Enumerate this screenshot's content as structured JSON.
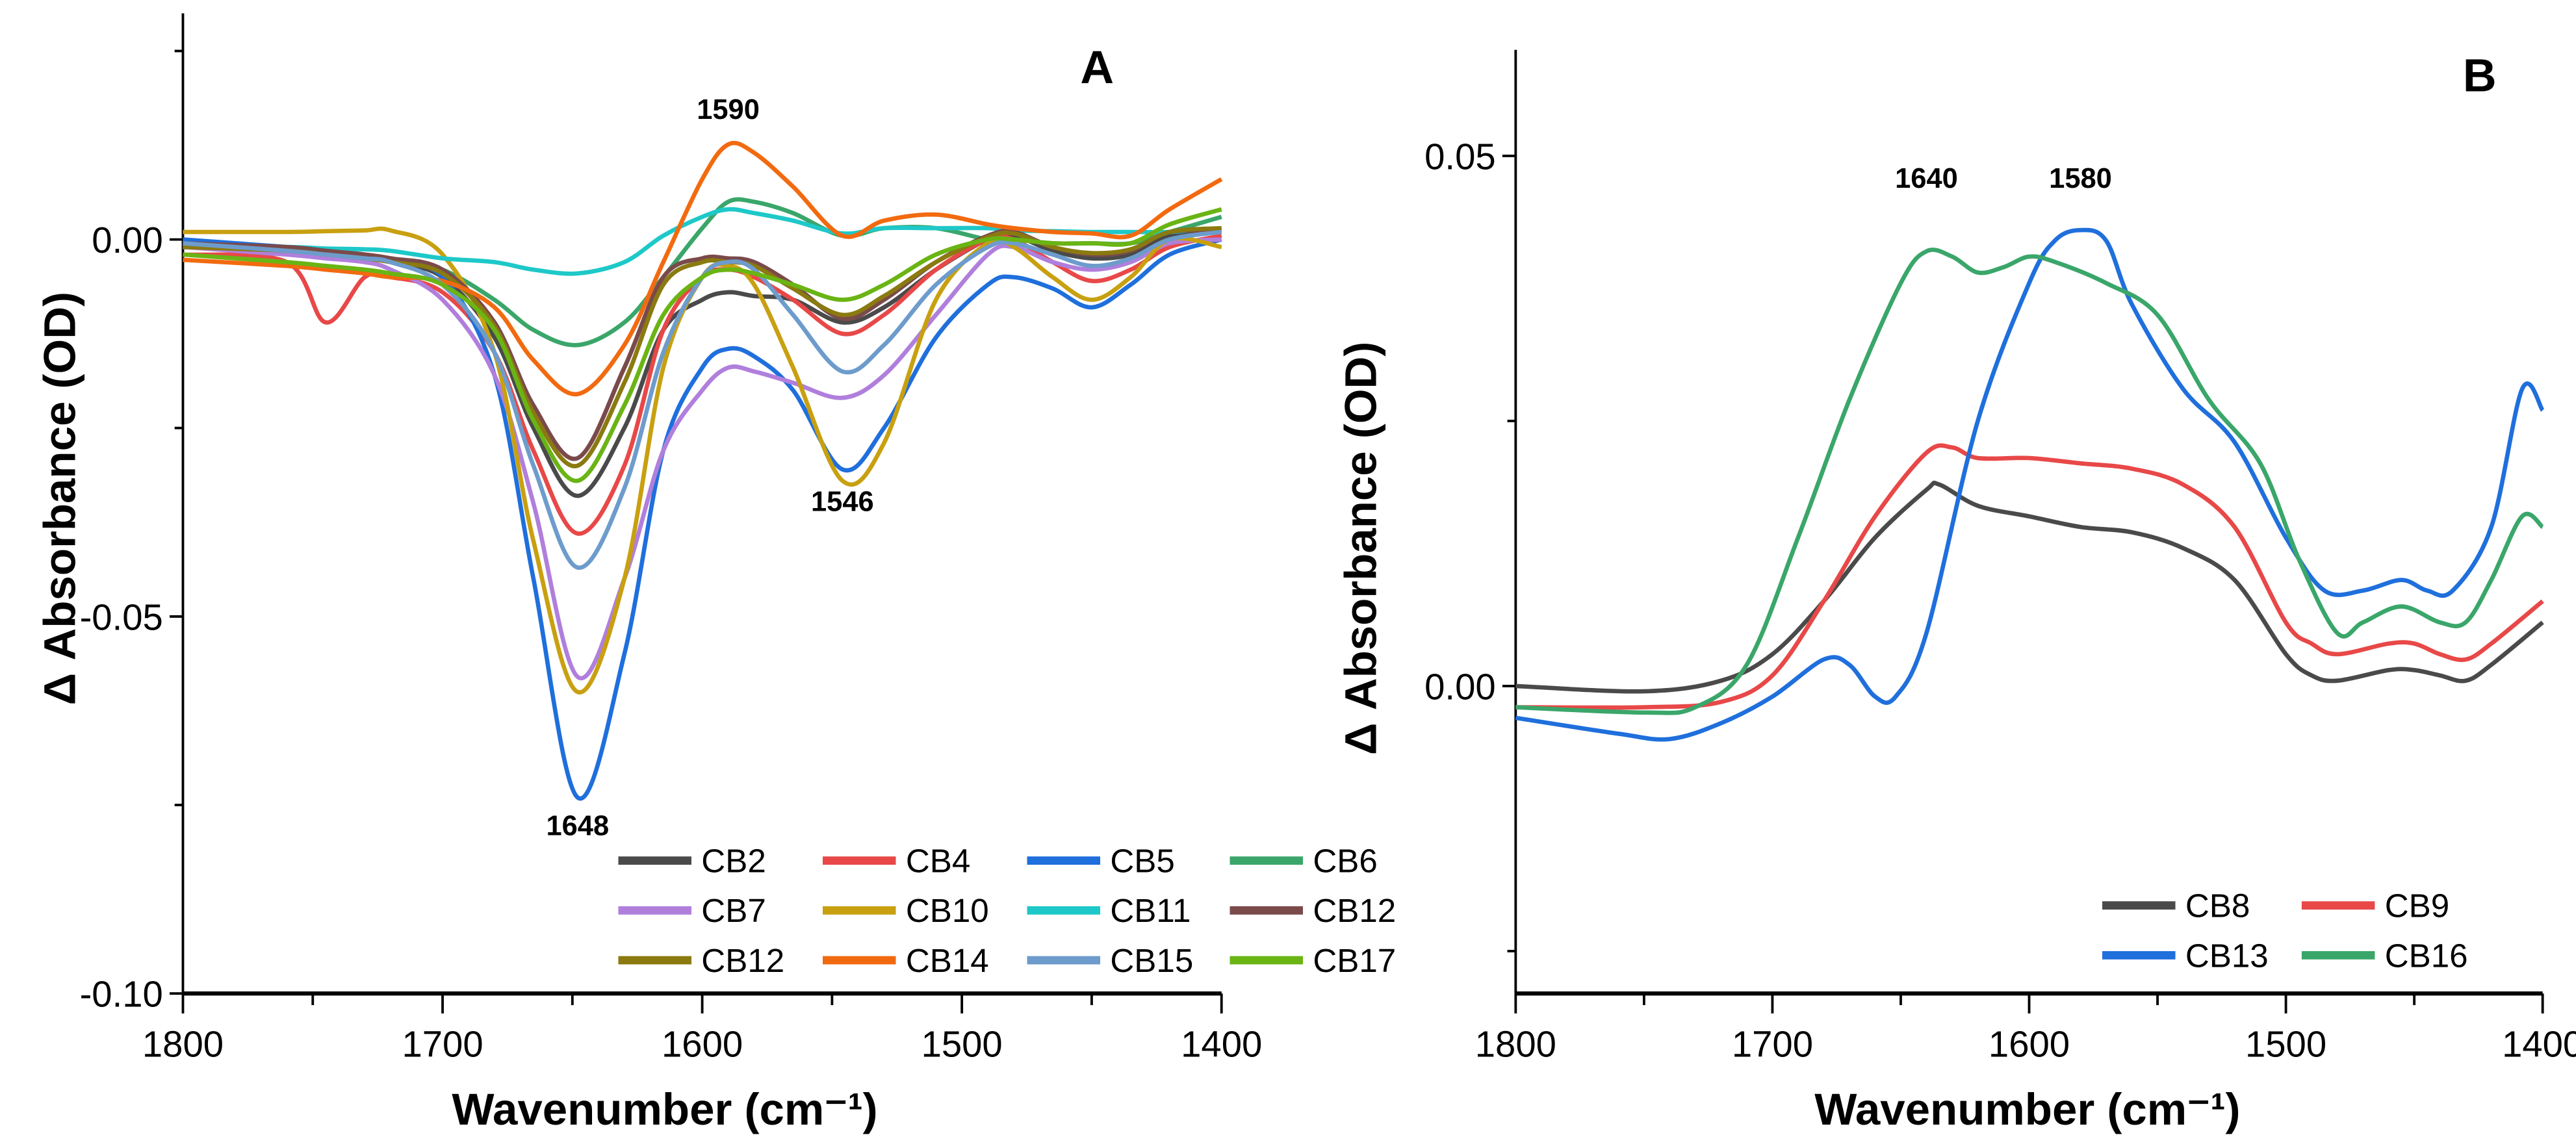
{
  "chart_data": [
    {
      "panel": "A",
      "type": "line",
      "xlabel": "Wavenumber (cm⁻¹)",
      "ylabel": "Δ Absorbance (OD)",
      "xlim": [
        1800,
        1400
      ],
      "ylim": [
        -0.1,
        0.03
      ],
      "xticks": [
        "1800",
        "1700",
        "1600",
        "1500",
        "1400"
      ],
      "yticks": [
        "0.00",
        "-0.05",
        "-0.10"
      ],
      "annotations": [
        {
          "text": "1590",
          "x": 1590,
          "y": 0.016
        },
        {
          "text": "1546",
          "x": 1546,
          "y": -0.036
        },
        {
          "text": "1648",
          "x": 1648,
          "y": -0.079
        }
      ],
      "legend_position": "bottom-right",
      "x": [
        1800,
        1760,
        1745,
        1730,
        1720,
        1700,
        1680,
        1665,
        1648,
        1630,
        1615,
        1600,
        1590,
        1580,
        1565,
        1546,
        1530,
        1510,
        1490,
        1480,
        1465,
        1450,
        1435,
        1420,
        1400
      ],
      "series": [
        {
          "name": "CB2",
          "color": "#4a4a4a",
          "values": [
            -0.5,
            -1.5,
            -2,
            -2.5,
            -3,
            -5,
            -13,
            -25,
            -34,
            -25,
            -12,
            -8,
            -7,
            -7.5,
            -8,
            -11,
            -9,
            -4,
            0,
            0.5,
            -1.5,
            -2.5,
            -2,
            0.5,
            1
          ]
        },
        {
          "name": "CB4",
          "color": "#e84848",
          "values": [
            -2,
            -3,
            -11,
            -5,
            -5,
            -7,
            -15,
            -28,
            -39,
            -30,
            -12,
            -5,
            -4,
            -5,
            -8,
            -12.5,
            -10,
            -4,
            0,
            0,
            -3,
            -5.5,
            -4,
            -1,
            0.5
          ]
        },
        {
          "name": "CB5",
          "color": "#1f6fdc",
          "values": [
            0,
            -1,
            -1.5,
            -2,
            -3,
            -5,
            -18,
            -45,
            -74,
            -55,
            -28,
            -17,
            -14.5,
            -15.5,
            -20,
            -30.5,
            -25,
            -13,
            -6,
            -5,
            -6.5,
            -9,
            -6,
            -2,
            0
          ]
        },
        {
          "name": "CB6",
          "color": "#3aa66a",
          "values": [
            -1,
            -1.5,
            -2,
            -2.2,
            -2.5,
            -4,
            -8,
            -12,
            -14,
            -11,
            -5,
            1.5,
            5,
            5,
            3.5,
            0.5,
            1.5,
            1.5,
            0,
            0,
            -0.5,
            -0.5,
            -0.5,
            1,
            3
          ]
        },
        {
          "name": "CB7",
          "color": "#b07fdc",
          "values": [
            -1,
            -2,
            -2.5,
            -3,
            -4,
            -8,
            -18,
            -35,
            -58,
            -45,
            -28,
            -20,
            -17,
            -17.5,
            -19,
            -21,
            -18,
            -10,
            -2,
            -1,
            -3,
            -4,
            -3,
            -0.5,
            0
          ]
        },
        {
          "name": "CB10",
          "color": "#c8a010",
          "values": [
            1,
            1,
            1.1,
            1.2,
            1.2,
            -2,
            -15,
            -40,
            -60,
            -45,
            -17,
            -5,
            -3.5,
            -6,
            -17,
            -32,
            -27,
            -8,
            -0.5,
            -1,
            -5,
            -8,
            -5,
            0,
            -1
          ]
        },
        {
          "name": "CB11",
          "color": "#1ec8c8",
          "values": [
            -1,
            -1,
            -1.2,
            -1.3,
            -1.5,
            -2.5,
            -3,
            -4,
            -4.5,
            -3,
            0.5,
            3,
            4,
            3.5,
            2.5,
            0.8,
            1.5,
            1.5,
            1.5,
            1.2,
            1.1,
            1,
            1,
            1,
            1.5
          ]
        },
        {
          "name": "CB12",
          "color": "#7a4a4a",
          "values": [
            -0.5,
            -1,
            -1.5,
            -2,
            -2.5,
            -4,
            -11,
            -22,
            -29,
            -17,
            -5,
            -2.5,
            -2.5,
            -3,
            -6,
            -10.5,
            -8,
            -3,
            0.5,
            1,
            -1,
            -2,
            -1.5,
            1,
            1
          ]
        },
        {
          "name": "CB12",
          "color": "#8a7a10",
          "values": [
            -1,
            -1.5,
            -2,
            -2.5,
            -3,
            -4.5,
            -11.5,
            -23,
            -30,
            -19,
            -6,
            -3,
            -3,
            -3.5,
            -6.5,
            -10,
            -7.5,
            -3,
            0.3,
            0.8,
            -1,
            -1.8,
            -1.3,
            1,
            1.5
          ]
        },
        {
          "name": "CB14",
          "color": "#f26a10",
          "values": [
            -2.7,
            -3.5,
            -4,
            -4.5,
            -5,
            -5.5,
            -9,
            -16,
            -20.5,
            -14,
            -3,
            8,
            12.6,
            11.5,
            7,
            0.5,
            2.5,
            3.3,
            2,
            1.5,
            1,
            0.8,
            0.5,
            4,
            8
          ]
        },
        {
          "name": "CB15",
          "color": "#6d9ccc",
          "values": [
            -0.5,
            -1.5,
            -2,
            -2.5,
            -3,
            -6,
            -15,
            -30,
            -43.5,
            -33,
            -15,
            -5,
            -3,
            -4,
            -10,
            -17.5,
            -14,
            -6,
            -1,
            -0.5,
            -2,
            -3.5,
            -2.5,
            0,
            1
          ]
        },
        {
          "name": "CB17",
          "color": "#6ab414",
          "values": [
            -2,
            -3,
            -3.5,
            -4,
            -4.5,
            -6,
            -12,
            -24,
            -32,
            -22,
            -10,
            -5,
            -4,
            -4.5,
            -6,
            -8,
            -6,
            -2,
            0,
            0,
            -0.5,
            -0.5,
            -0.5,
            2,
            4
          ]
        }
      ],
      "value_unit_scale": 0.001
    },
    {
      "panel": "B",
      "type": "line",
      "xlabel": "Wavenumber (cm⁻¹)",
      "ylabel": "Δ Absorbance (OD)",
      "xlim": [
        1800,
        1400
      ],
      "ylim": [
        -0.029,
        0.06
      ],
      "xticks": [
        "1800",
        "1700",
        "1600",
        "1500",
        "1400"
      ],
      "yticks": [
        "0.05",
        "0.00"
      ],
      "annotations": [
        {
          "text": "1640",
          "x": 1640,
          "y": 0.047
        },
        {
          "text": "1580",
          "x": 1580,
          "y": 0.047
        }
      ],
      "legend_position": "bottom-right",
      "value_unit_scale": 0.001,
      "series": [
        {
          "name": "CB8",
          "color": "#4a4a4a",
          "x": [
            1800,
            1750,
            1720,
            1700,
            1680,
            1660,
            1640,
            1635,
            1620,
            1600,
            1580,
            1560,
            1540,
            1520,
            1500,
            1490,
            1480,
            1460,
            1450,
            1440,
            1430,
            1420,
            1400
          ],
          "values": [
            0,
            -0.5,
            0.5,
            3,
            8,
            14,
            18.5,
            19,
            17,
            16,
            15,
            14.5,
            13,
            10,
            3,
            1,
            0.5,
            1.5,
            1.5,
            1,
            0.5,
            2,
            6
          ]
        },
        {
          "name": "CB9",
          "color": "#e84848",
          "x": [
            1800,
            1750,
            1720,
            1700,
            1680,
            1660,
            1640,
            1630,
            1620,
            1600,
            1580,
            1560,
            1540,
            1520,
            1500,
            1490,
            1480,
            1460,
            1450,
            1440,
            1430,
            1420,
            1400
          ],
          "values": [
            -2,
            -2,
            -1.5,
            1,
            8,
            16,
            22,
            22.5,
            21.5,
            21.5,
            21,
            20.5,
            19,
            15,
            6,
            4,
            3,
            4,
            4,
            3,
            2.5,
            4,
            8
          ]
        },
        {
          "name": "CB13",
          "color": "#1f6fdc",
          "x": [
            1800,
            1760,
            1740,
            1720,
            1700,
            1680,
            1670,
            1660,
            1652,
            1640,
            1620,
            1600,
            1590,
            1580,
            1570,
            1560,
            1540,
            1520,
            1500,
            1485,
            1470,
            1455,
            1445,
            1435,
            1420,
            1408,
            1400
          ],
          "values": [
            -3,
            -4.5,
            -5,
            -3.5,
            -1,
            2.5,
            2,
            -1,
            -1,
            5,
            25,
            38,
            42,
            43,
            42,
            36,
            28,
            23,
            14,
            9,
            9,
            10,
            9,
            9,
            15,
            28,
            26
          ]
        },
        {
          "name": "CB16",
          "color": "#3aa66a",
          "x": [
            1800,
            1750,
            1730,
            1710,
            1690,
            1670,
            1650,
            1640,
            1630,
            1620,
            1610,
            1600,
            1590,
            1570,
            1550,
            1530,
            1510,
            1495,
            1480,
            1470,
            1455,
            1440,
            1430,
            1420,
            1408,
            1400
          ],
          "values": [
            -2,
            -2.5,
            -2,
            2,
            14,
            27,
            38,
            41,
            40.5,
            39,
            39.5,
            40.5,
            40,
            38,
            35,
            27,
            21,
            12,
            5,
            6,
            7.5,
            6,
            6,
            10,
            16,
            15
          ]
        }
      ]
    }
  ]
}
